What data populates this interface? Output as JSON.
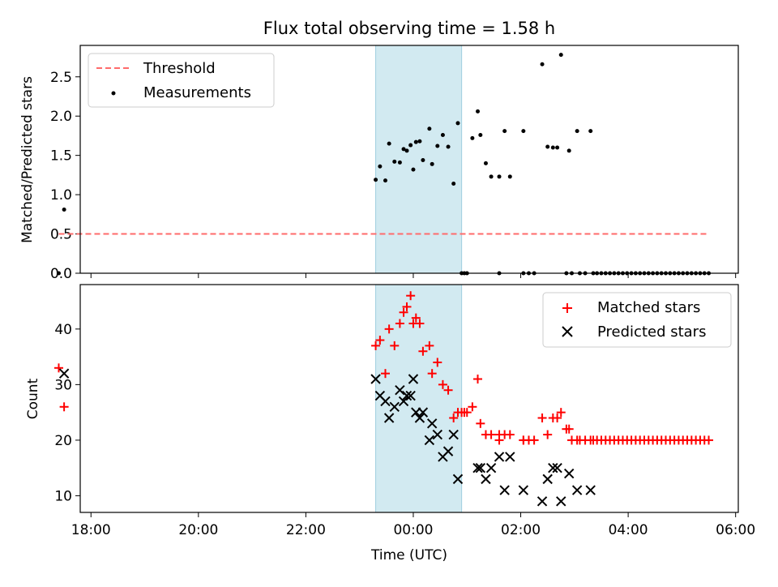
{
  "chart_data": [
    {
      "type": "scatter",
      "title": "Flux total observing time = 1.58 h",
      "xlabel": "",
      "ylabel": "Matched/Predicted stars",
      "x_unit": "hours since 00:00 UTC",
      "xlim": [
        -6.2,
        6.05
      ],
      "ylim": [
        0,
        2.9
      ],
      "yticks": [
        0.0,
        0.5,
        1.0,
        1.5,
        2.0,
        2.5
      ],
      "ytick_labels": [
        "0.0",
        "0.5",
        "1.0",
        "1.5",
        "2.0",
        "2.5"
      ],
      "xticks": [
        -6,
        -4,
        -2,
        0,
        2,
        4,
        6
      ],
      "shaded_span": [
        -0.7,
        0.9
      ],
      "shade_color": "#add8e6",
      "legend": {
        "position": "top-left",
        "entries": [
          "Threshold",
          "Measurements"
        ]
      },
      "series": [
        {
          "name": "Threshold",
          "style": "dashed-line",
          "color": "#ff6b6b",
          "x": [
            -6.6,
            5.5
          ],
          "y": [
            0.5,
            0.5
          ]
        },
        {
          "name": "Measurements",
          "style": "dot",
          "color": "#000000",
          "x": [
            -6.6,
            -6.5,
            -0.7,
            -0.62,
            -0.52,
            -0.45,
            -0.35,
            -0.25,
            -0.18,
            -0.12,
            -0.05,
            0.0,
            0.05,
            0.12,
            0.18,
            0.3,
            0.35,
            0.45,
            0.55,
            0.65,
            0.75,
            0.83,
            0.9,
            1.0,
            1.1,
            1.2,
            1.25,
            1.35,
            1.45,
            1.6,
            1.7,
            1.8,
            2.05,
            2.4,
            2.5,
            2.6,
            2.68,
            2.75,
            2.9,
            3.05,
            3.3,
            0.95,
            1.6,
            2.05,
            2.15,
            2.25,
            2.85,
            2.95,
            3.1,
            3.2,
            3.35,
            3.42,
            3.5,
            3.58,
            3.66,
            3.74,
            3.82,
            3.9,
            3.98,
            4.06,
            4.14,
            4.22,
            4.3,
            4.38,
            4.46,
            4.54,
            4.62,
            4.7,
            4.78,
            4.86,
            4.94,
            5.02,
            5.1,
            5.18,
            5.26,
            5.34,
            5.42,
            5.5
          ],
          "y": [
            0.0,
            0.81,
            1.19,
            1.36,
            1.18,
            1.65,
            1.42,
            1.41,
            1.58,
            1.56,
            1.63,
            1.32,
            1.67,
            1.68,
            1.44,
            1.84,
            1.39,
            1.62,
            1.76,
            1.61,
            1.14,
            1.91,
            0.0,
            0.0,
            1.72,
            2.06,
            1.76,
            1.4,
            1.23,
            1.23,
            1.81,
            1.23,
            1.81,
            2.66,
            1.61,
            1.6,
            1.6,
            2.78,
            1.56,
            1.81,
            1.81,
            0.0,
            0.0,
            0.0,
            0.0,
            0.0,
            0.0,
            0.0,
            0.0,
            0.0,
            0.0,
            0.0,
            0.0,
            0.0,
            0.0,
            0.0,
            0.0,
            0.0,
            0.0,
            0.0,
            0.0,
            0.0,
            0.0,
            0.0,
            0.0,
            0.0,
            0.0,
            0.0,
            0.0,
            0.0,
            0.0,
            0.0,
            0.0,
            0.0,
            0.0,
            0.0,
            0.0,
            0.0
          ]
        }
      ]
    },
    {
      "type": "scatter",
      "title": "",
      "xlabel": "Time (UTC)",
      "ylabel": "Count",
      "x_unit": "hours since 00:00 UTC",
      "xlim": [
        -6.2,
        6.05
      ],
      "ylim": [
        7,
        48
      ],
      "yticks": [
        10,
        20,
        30,
        40
      ],
      "ytick_labels": [
        "10",
        "20",
        "30",
        "40"
      ],
      "xticks": [
        -6,
        -4,
        -2,
        0,
        2,
        4,
        6
      ],
      "xtick_labels": [
        "18:00",
        "20:00",
        "22:00",
        "00:00",
        "02:00",
        "04:00",
        "06:00"
      ],
      "shaded_span": [
        -0.7,
        0.9
      ],
      "shade_color": "#add8e6",
      "legend": {
        "position": "top-right",
        "entries": [
          "Matched stars",
          "Predicted stars"
        ]
      },
      "series": [
        {
          "name": "Matched stars",
          "marker": "+",
          "color": "#ff0000",
          "x": [
            -6.6,
            -6.5,
            -0.7,
            -0.62,
            -0.52,
            -0.45,
            -0.35,
            -0.25,
            -0.18,
            -0.12,
            -0.05,
            0.0,
            0.05,
            0.12,
            0.18,
            0.3,
            0.35,
            0.45,
            0.55,
            0.65,
            0.75,
            0.83,
            0.9,
            1.0,
            1.1,
            1.2,
            1.25,
            1.35,
            1.45,
            1.6,
            1.7,
            1.8,
            2.05,
            2.4,
            2.5,
            2.6,
            2.68,
            2.75,
            2.9,
            3.05,
            3.3,
            0.95,
            1.6,
            2.05,
            2.15,
            2.25,
            2.85,
            2.95,
            3.1,
            3.2,
            3.35,
            3.42,
            3.5,
            3.58,
            3.66,
            3.74,
            3.82,
            3.9,
            3.98,
            4.06,
            4.14,
            4.22,
            4.3,
            4.38,
            4.46,
            4.54,
            4.62,
            4.7,
            4.78,
            4.86,
            4.94,
            5.02,
            5.1,
            5.18,
            5.26,
            5.34,
            5.42,
            5.5
          ],
          "y": [
            33,
            26,
            37,
            38,
            32,
            40,
            37,
            41,
            43,
            44,
            46,
            41,
            42,
            41,
            36,
            37,
            32,
            34,
            30,
            29,
            24,
            25,
            25,
            25,
            26,
            31,
            23,
            21,
            21,
            20,
            21,
            21,
            20,
            24,
            21,
            24,
            24,
            25,
            22,
            20,
            20,
            25,
            21,
            20,
            20,
            20,
            22,
            20,
            20,
            20,
            20,
            20,
            20,
            20,
            20,
            20,
            20,
            20,
            20,
            20,
            20,
            20,
            20,
            20,
            20,
            20,
            20,
            20,
            20,
            20,
            20,
            20,
            20,
            20,
            20,
            20,
            20,
            20
          ]
        },
        {
          "name": "Predicted stars",
          "marker": "x",
          "color": "#000000",
          "x": [
            -6.5,
            -0.7,
            -0.62,
            -0.52,
            -0.45,
            -0.35,
            -0.25,
            -0.18,
            -0.12,
            -0.05,
            0.0,
            0.05,
            0.12,
            0.18,
            0.3,
            0.35,
            0.45,
            0.55,
            0.65,
            0.75,
            0.83,
            1.2,
            1.25,
            1.35,
            1.45,
            1.6,
            1.7,
            1.8,
            2.05,
            2.4,
            2.5,
            2.6,
            2.68,
            2.75,
            2.9,
            3.05,
            3.3
          ],
          "y": [
            32,
            31,
            28,
            27,
            24,
            26,
            29,
            27,
            28,
            28,
            31,
            25,
            24,
            25,
            20,
            23,
            21,
            17,
            18,
            21,
            13,
            15,
            15,
            13,
            15,
            17,
            11,
            17,
            11,
            9,
            13,
            15,
            15,
            9,
            14,
            11,
            11
          ]
        }
      ]
    }
  ]
}
